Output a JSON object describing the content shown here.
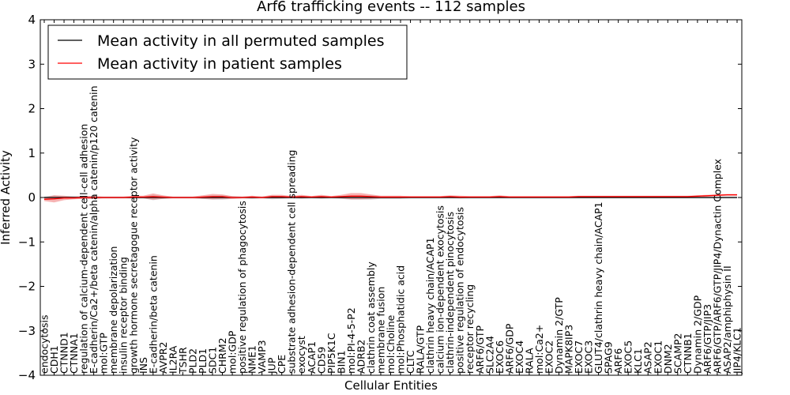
{
  "chart_data": {
    "type": "line",
    "title": "Arf6 trafficking events -- 112 samples",
    "xlabel": "Cellular Entities",
    "ylabel": "Inferred Activity",
    "ylim": [
      -4,
      4
    ],
    "yticks": [
      -4,
      -3,
      -2,
      -1,
      0,
      1,
      2,
      3,
      4
    ],
    "ytick_labels": [
      "−4",
      "−3",
      "−2",
      "−1",
      "0",
      "1",
      "2",
      "3",
      "4"
    ],
    "legend_position": "top-left",
    "colors": {
      "permuted": "#000000",
      "patient": "#ff0000",
      "patient_band": "#f08080",
      "permuted_band": "#b0b0b8"
    },
    "categories": [
      "endocytosis",
      "CDH1",
      "CTNND1",
      "CTNNA1",
      "regulation of calcium-dependent cell-cell adhesion",
      "E-cadherin/Ca2+/beta catenin/alpha catenin/p120 catenin",
      "mol:GTP",
      "membrane depolarization",
      "insulin receptor binding",
      "growth hormone secretagogue receptor activity",
      "INS",
      "E-cadherin/beta catenin",
      "AVPR2",
      "IL2RA",
      "TSHR",
      "PLD2",
      "PLD1",
      "SDC1",
      "CHRM2",
      "mol:GDP",
      "positive regulation of phagocytosis",
      "NME1",
      "VAMP3",
      "JUP",
      "CPE",
      "substrate adhesion-dependent cell spreading",
      "exocyst",
      "ACAP1",
      "CD59",
      "PIP5K1C",
      "BIN1",
      "mol:PI-4-5-P2",
      "ADRB2",
      "clathrin coat assembly",
      "membrane fusion",
      "mol:Choline",
      "mol:Phosphatidic acid",
      "CLTC",
      "RALA/GTP",
      "clathrin heavy chain/ACAP1",
      "calcium ion-dependent exocytosis",
      "clathrin-independent pinocytosis",
      "positive regulation of endocytosis",
      "receptor recycling",
      "ARF6/GTP",
      "SLC2A4",
      "EXOC6",
      "ARF6/GDP",
      "EXOC4",
      "RALA",
      "mol:Ca2+",
      "EXOC2",
      "Dynamin 2/GTP",
      "MAPK8IP3",
      "EXOC7",
      "EXOC3",
      "GLUT4/clathrin heavy chain/ACAP1",
      "SPAG9",
      "ARF6",
      "EXOC5",
      "KLC1",
      "ASAP2",
      "EXOC1",
      "DNM2",
      "SCAMP2",
      "CTNNB1",
      "Dynamin 2/GDP",
      "ARF6/GTP/JIP3",
      "ARF6/GTP/ARF6/GTP/JIP4/Dynactin Complex",
      "ASAP2/amphiphysin II",
      "JIP4/KLC1"
    ],
    "series": [
      {
        "name": "Mean activity in all permuted samples",
        "values": [
          0,
          0,
          0,
          0,
          0,
          0,
          0,
          0,
          0,
          0,
          0,
          0,
          0,
          0,
          0,
          0,
          0,
          0,
          0,
          0,
          0,
          0,
          0,
          0,
          0,
          0,
          0,
          0,
          0,
          0,
          0,
          0,
          0,
          0,
          0,
          0,
          0,
          0,
          0,
          0,
          0,
          0,
          0,
          0,
          0,
          0,
          0,
          0,
          0,
          0,
          0,
          0,
          0,
          0,
          0,
          0,
          0,
          0,
          0,
          0,
          0,
          0,
          0,
          0,
          0,
          0,
          0,
          0,
          0,
          0,
          0
        ],
        "band": [
          0.02,
          0.05,
          0.03,
          0.03,
          0.03,
          0.03,
          0.02,
          0.02,
          0.02,
          0.02,
          0.02,
          0.06,
          0.03,
          0.02,
          0.02,
          0.02,
          0.03,
          0.05,
          0.05,
          0.03,
          0.02,
          0.03,
          0.02,
          0.04,
          0.03,
          0.02,
          0.03,
          0.02,
          0.03,
          0.02,
          0.03,
          0.05,
          0.05,
          0.05,
          0.03,
          0.03,
          0.03,
          0.02,
          0.02,
          0.02,
          0.02,
          0.02,
          0.02,
          0.02,
          0.02,
          0.02,
          0.02,
          0.02,
          0.02,
          0.02,
          0.02,
          0.02,
          0.02,
          0.02,
          0.02,
          0.02,
          0.02,
          0.02,
          0.02,
          0.02,
          0.02,
          0.02,
          0.02,
          0.02,
          0.02,
          0.02,
          0.02,
          0.02,
          0.02,
          0.02,
          0.02
        ]
      },
      {
        "name": "Mean activity in patient samples",
        "values": [
          -0.04,
          -0.03,
          -0.01,
          -0.01,
          0.0,
          0.0,
          0.0,
          0.0,
          0.0,
          0.01,
          0.01,
          0.02,
          0.01,
          0.0,
          0.0,
          0.0,
          0.01,
          0.02,
          0.02,
          0.0,
          0.0,
          0.01,
          0.0,
          0.02,
          0.02,
          0.01,
          0.02,
          0.01,
          0.02,
          0.01,
          0.02,
          0.03,
          0.03,
          0.02,
          0.01,
          0.01,
          0.01,
          0.01,
          0.01,
          0.01,
          0.01,
          0.02,
          0.01,
          0.01,
          0.01,
          0.01,
          0.02,
          0.01,
          0.01,
          0.01,
          0.01,
          0.01,
          0.01,
          0.01,
          0.02,
          0.02,
          0.02,
          0.02,
          0.02,
          0.02,
          0.02,
          0.02,
          0.02,
          0.02,
          0.02,
          0.02,
          0.03,
          0.04,
          0.05,
          0.06,
          0.06
        ],
        "band": [
          0.04,
          0.08,
          0.05,
          0.03,
          0.03,
          0.03,
          0.02,
          0.02,
          0.02,
          0.03,
          0.03,
          0.07,
          0.04,
          0.02,
          0.02,
          0.02,
          0.04,
          0.06,
          0.05,
          0.03,
          0.02,
          0.03,
          0.02,
          0.04,
          0.04,
          0.02,
          0.04,
          0.02,
          0.04,
          0.02,
          0.04,
          0.07,
          0.07,
          0.05,
          0.03,
          0.03,
          0.03,
          0.02,
          0.02,
          0.02,
          0.02,
          0.03,
          0.03,
          0.02,
          0.02,
          0.02,
          0.03,
          0.02,
          0.02,
          0.02,
          0.02,
          0.02,
          0.02,
          0.02,
          0.02,
          0.02,
          0.02,
          0.02,
          0.02,
          0.02,
          0.02,
          0.02,
          0.02,
          0.02,
          0.02,
          0.02,
          0.02,
          0.02,
          0.02,
          0.02,
          0.02
        ]
      }
    ]
  }
}
